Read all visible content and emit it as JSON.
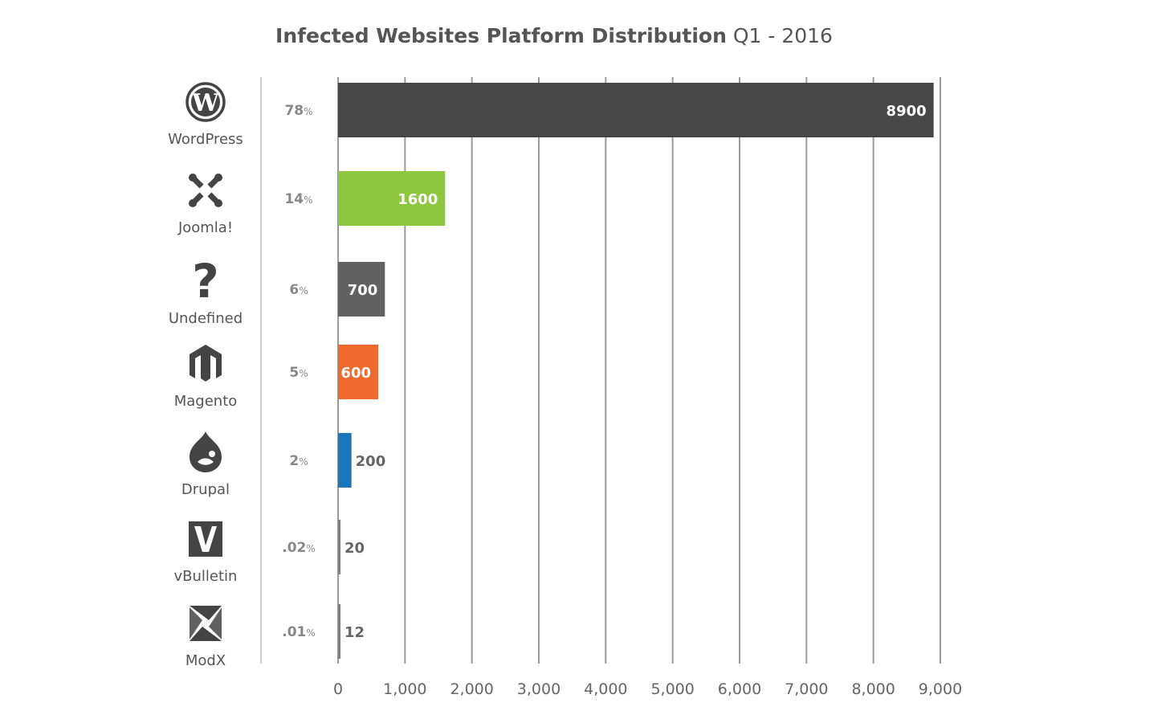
{
  "title": {
    "main": "Infected Websites Platform Distribution",
    "sub": "Q1 - 2016"
  },
  "colors": {
    "grid": "#9a9a9a",
    "divider": "#d0d0d0",
    "tick_text": "#666666",
    "pct_text": "#888888",
    "icon": "#444444"
  },
  "chart_data": {
    "type": "bar",
    "orientation": "horizontal",
    "categories": [
      "WordPress",
      "Joomla!",
      "Undefined",
      "Magento",
      "Drupal",
      "vBulletin",
      "ModX"
    ],
    "values": [
      8900,
      1600,
      700,
      600,
      200,
      20,
      12
    ],
    "percent_labels": [
      {
        "num": "78",
        "unit": "%"
      },
      {
        "num": "14",
        "unit": "%"
      },
      {
        "num": "6",
        "unit": "%"
      },
      {
        "num": "5",
        "unit": "%"
      },
      {
        "num": "2",
        "unit": "%"
      },
      {
        "num": ".02",
        "unit": "%"
      },
      {
        "num": ".01",
        "unit": "%"
      }
    ],
    "value_labels": [
      "8900",
      "1600",
      "700",
      "600",
      "200",
      "20",
      "12"
    ],
    "bar_colors": [
      "#474747",
      "#8dc63f",
      "#616161",
      "#ef6b2d",
      "#1b75bb",
      "#808080",
      "#808080"
    ],
    "value_label_inside": [
      true,
      true,
      true,
      true,
      false,
      false,
      false
    ],
    "icons": [
      "wordpress-icon",
      "joomla-icon",
      "question-icon",
      "magento-icon",
      "drupal-icon",
      "vbulletin-icon",
      "modx-icon"
    ],
    "xlim": [
      0,
      9000
    ],
    "x_ticks": [
      0,
      1000,
      2000,
      3000,
      4000,
      5000,
      6000,
      7000,
      8000,
      9000
    ],
    "x_tick_labels": [
      "0",
      "1,000",
      "2,000",
      "3,000",
      "4,000",
      "5,000",
      "6,000",
      "7,000",
      "8,000",
      "9,000"
    ],
    "grid": true,
    "legend": false
  }
}
